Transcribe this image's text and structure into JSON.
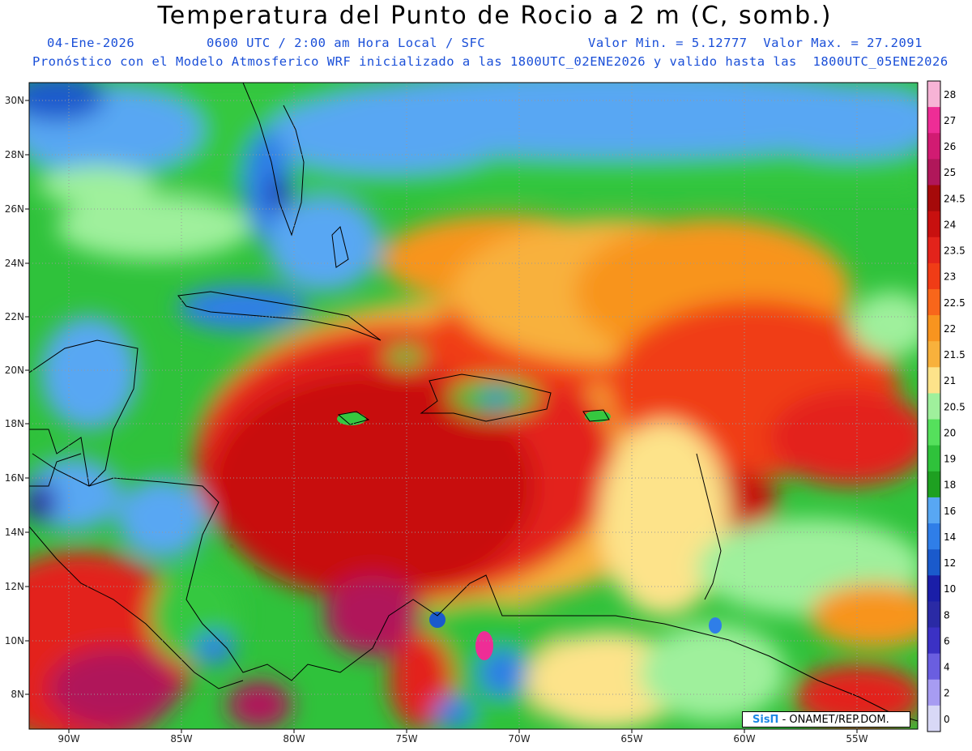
{
  "title": "Temperatura del Punto de Rocio a 2 m (C, somb.)",
  "subtitle": {
    "date": "04-Ene-2026",
    "time": "0600 UTC / 2:00 am Hora Local / SFC",
    "range": "Valor Min. = 5.12777  Valor Max. = 27.2091",
    "model": "Pronóstico con el Modelo Atmosferico WRF inicializado a las 1800UTC_02ENE2026 y valido hasta las  1800UTC_05ENE2026"
  },
  "axes": {
    "lat_labels": [
      "30N",
      "28N",
      "26N",
      "24N",
      "22N",
      "20N",
      "18N",
      "16N",
      "14N",
      "12N",
      "10N",
      "8N"
    ],
    "lon_labels": [
      "90W",
      "85W",
      "80W",
      "75W",
      "70W",
      "65W",
      "60W",
      "55W"
    ]
  },
  "colorbar": {
    "labels": [
      "28",
      "27",
      "26",
      "25",
      "24.5",
      "24",
      "23.5",
      "23",
      "22.5",
      "22",
      "21.5",
      "21",
      "20.5",
      "20",
      "19",
      "18",
      "16",
      "14",
      "12",
      "10",
      "8",
      "6",
      "4",
      "2",
      "0"
    ],
    "colors": [
      "#f7b3d6",
      "#ee2d96",
      "#d11b72",
      "#b0175a",
      "#a50a0a",
      "#c8100f",
      "#e3231b",
      "#f03c16",
      "#f8661b",
      "#f8941f",
      "#f8b13c",
      "#fde38a",
      "#9ff09c",
      "#55e05c",
      "#2fc23b",
      "#1ea021",
      "#58a7f3",
      "#2f7ee8",
      "#1a5acc",
      "#1a1ea8",
      "#2a2aa5",
      "#3b31c4",
      "#6a5ee0",
      "#a79cf2",
      "#d8d8f6"
    ]
  },
  "credit": {
    "logo": "SisΠ",
    "text": " - ONAMET/REP.DOM."
  }
}
